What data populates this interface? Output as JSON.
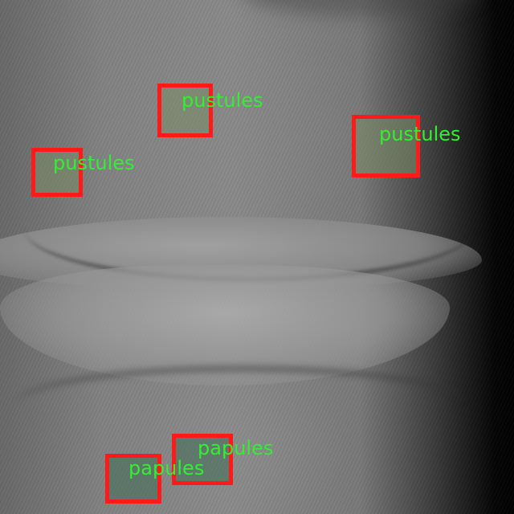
{
  "image": {
    "subject": "grayscale close-up of lower face with lips and chin",
    "box_color": "#ff1a1a",
    "label_color": "#33ee33"
  },
  "detections": [
    {
      "label": "pustules"
    },
    {
      "label": "pustules"
    },
    {
      "label": "pustules"
    },
    {
      "label": "papules"
    },
    {
      "label": "papules"
    }
  ]
}
